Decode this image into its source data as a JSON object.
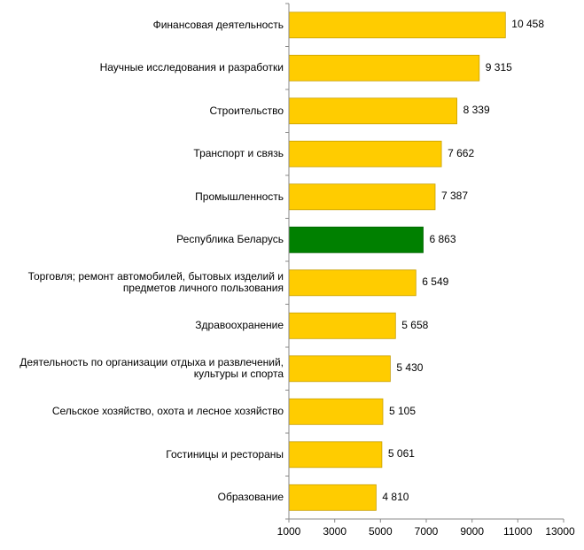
{
  "chart_data": {
    "type": "bar",
    "orientation": "horizontal",
    "title": "",
    "xlabel": "",
    "ylabel": "",
    "xlim": [
      1000,
      13000
    ],
    "xticks": [
      1000,
      3000,
      5000,
      7000,
      9000,
      11000,
      13000
    ],
    "xtick_labels": [
      "1000",
      "3000",
      "5000",
      "7000",
      "9000",
      "11000",
      "13000"
    ],
    "grid": false,
    "legend": "none",
    "colors": {
      "default": "#FFCC00",
      "highlight": "#008000",
      "border": "#C9A000"
    },
    "categories": [
      "Финансовая деятельность",
      "Научные исследования и разработки",
      "Строительство",
      "Транспорт и связь",
      "Промышленность",
      "Республика Беларусь",
      "Торговля; ремонт автомобилей, бытовых изделий и предметов личного пользования",
      "Здравоохранение",
      "Деятельность по организации отдыха и развлечений, культуры и спорта",
      "Сельское хозяйство, охота и лесное хозяйство",
      "Гостиницы и рестораны",
      "Образование"
    ],
    "values": [
      10458,
      9315,
      8339,
      7662,
      7387,
      6863,
      6549,
      5658,
      5430,
      5105,
      5061,
      4810
    ],
    "value_labels": [
      "10 458",
      "9 315",
      "8 339",
      "7 662",
      "7 387",
      "6 863",
      "6 549",
      "5 658",
      "5 430",
      "5 105",
      "5 061",
      "4 810"
    ],
    "highlight_category": "Республика Беларусь"
  }
}
